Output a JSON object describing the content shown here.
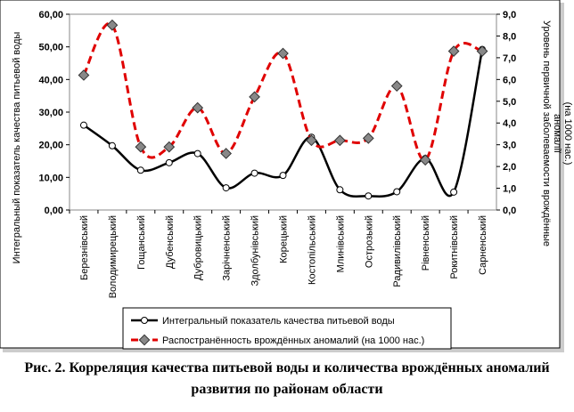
{
  "chart_data": {
    "type": "line",
    "categories": [
      "Березнівський",
      "Володимирецький",
      "Гощанський",
      "Дубенський",
      "Дубровицький",
      "Зарічненський",
      "Здолбунівський",
      "Корецький",
      "Костопільський",
      "Млинівський",
      "Острозький",
      "Радивилівський",
      "Рівненський",
      "Рокитнівський",
      "Сарненський"
    ],
    "series": [
      {
        "name": "Интегральный показатель качества питьевой воды",
        "color": "#000000",
        "values": [
          26,
          19.7,
          12.2,
          14.5,
          17.3,
          6.8,
          11.3,
          10.6,
          22.3,
          6.2,
          4.3,
          5.6,
          15.8,
          5.5,
          49.2
        ]
      },
      {
        "name": "Распостранённость врождённых аномалий (на 1000 нас.)",
        "color": "#e00000",
        "axis": "y2",
        "values": [
          6.2,
          8.5,
          2.9,
          2.9,
          4.7,
          2.6,
          5.2,
          7.2,
          3.2,
          3.2,
          3.3,
          5.7,
          2.3,
          7.3,
          7.3
        ]
      }
    ],
    "ylabel": "Интегральный показатель качества питьевой воды",
    "y2label": [
      "Уровень первичной заболеваемости врождённые",
      "аномалії",
      "(на 1000 нас.)"
    ],
    "ylim": [
      0,
      60
    ],
    "yticks": [
      {
        "value": 0,
        "label": "0,00"
      },
      {
        "value": 10,
        "label": "10,00"
      },
      {
        "value": 20,
        "label": "20,00"
      },
      {
        "value": 30,
        "label": "30,00"
      },
      {
        "value": 40,
        "label": "40,00"
      },
      {
        "value": 50,
        "label": "50,00"
      },
      {
        "value": 60,
        "label": "60,00"
      }
    ],
    "y2lim": [
      0,
      9
    ],
    "y2ticks": [
      {
        "value": 0,
        "label": "0,0"
      },
      {
        "value": 1,
        "label": "1,0"
      },
      {
        "value": 2,
        "label": "2,0"
      },
      {
        "value": 3,
        "label": "3,0"
      },
      {
        "value": 4,
        "label": "4,0"
      },
      {
        "value": 5,
        "label": "5,0"
      },
      {
        "value": 6,
        "label": "6,0"
      },
      {
        "value": 7,
        "label": "7,0"
      },
      {
        "value": 8,
        "label": "8,0"
      },
      {
        "value": 9,
        "label": "9,0"
      }
    ],
    "caption": "Рис. 2. Корреляция качества питьевой воды и количества врождённых аномалий развития по районам области"
  }
}
